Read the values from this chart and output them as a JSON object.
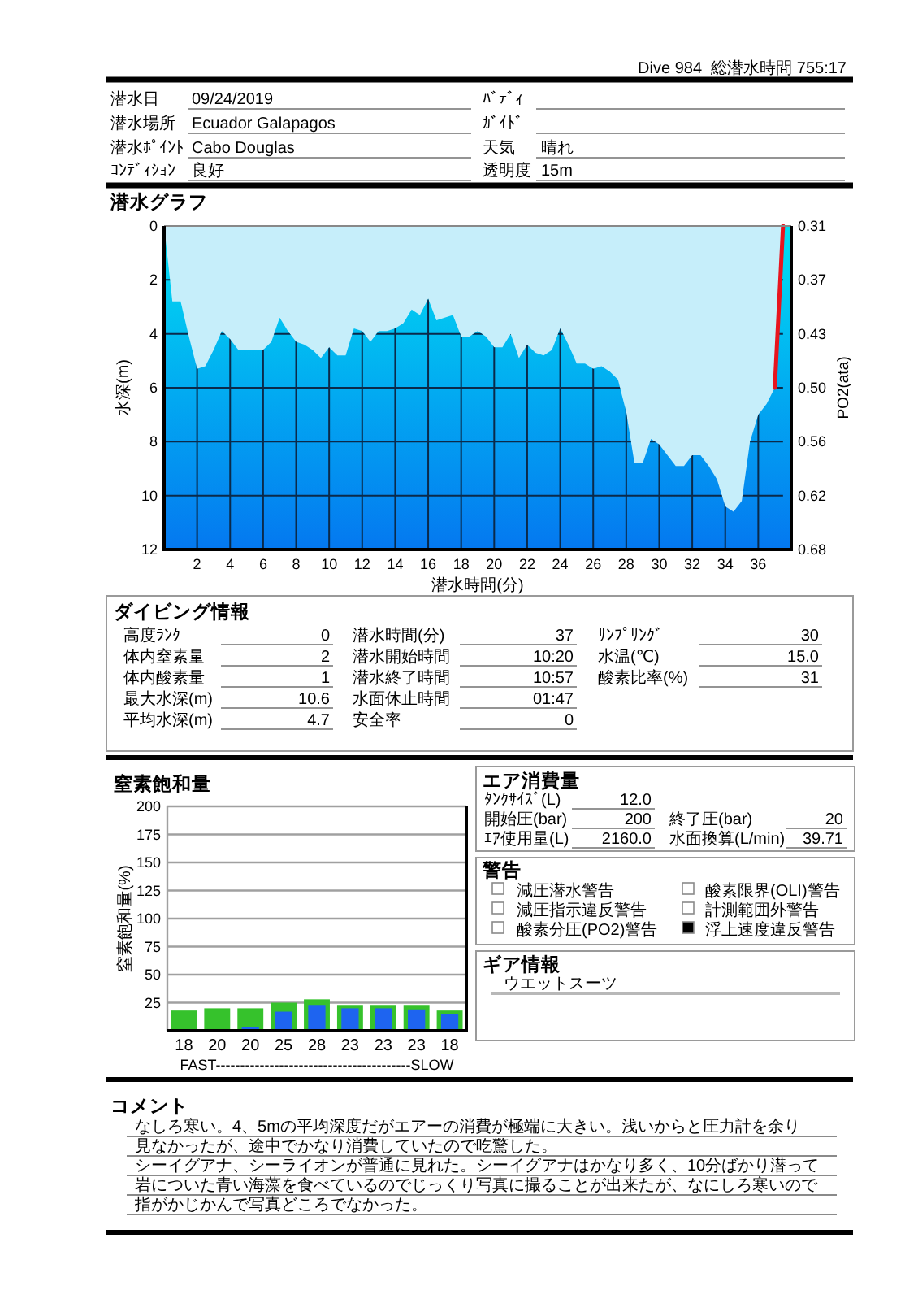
{
  "chart_data": [
    {
      "type": "other",
      "annotations": [
        "Dive 984",
        "総潜水時間 755:17",
        "潜水日",
        "09/24/2019",
        "潜水場所",
        "Ecuador Galapagos",
        "潜水ﾎﾟｲﾝﾄ",
        "Cabo Douglas",
        "ｺﾝﾃﾞｨｼｮﾝ",
        "良好",
        "ﾊﾞﾃﾞｨ",
        "ｶﾞｲﾄﾞ",
        "天気",
        "晴れ",
        "透明度",
        "15m"
      ]
    },
    {
      "type": "area",
      "title": "潜水グラフ",
      "xlabel": "潜水時間(分)",
      "ylabel": "水深(m)",
      "y2label": "PO2(ata)",
      "xlim": [
        0,
        38
      ],
      "ylim": [
        12,
        0
      ],
      "y2lim": [
        0.682,
        0.31
      ],
      "xticks": [
        2,
        4,
        6,
        8,
        10,
        12,
        14,
        16,
        18,
        20,
        22,
        24,
        26,
        28,
        30,
        32,
        34,
        36
      ],
      "yticks": [
        0,
        2,
        4,
        6,
        8,
        10,
        12
      ],
      "y2ticks": [
        0.31,
        {
          "value": 0.372,
          "label": "0.37"
        },
        {
          "value": 0.434,
          "label": "0.43"
        },
        {
          "value": 0.496,
          "label": "0.50"
        },
        {
          "value": 0.558,
          "label": "0.56"
        },
        0.62,
        {
          "value": 0.682,
          "label": "0.68"
        }
      ],
      "grid": true,
      "series": [
        {
          "color": "#c6eefa",
          "x": [
            0,
            0.5,
            1,
            1.5,
            2,
            2.5,
            3,
            3.5,
            4,
            4.5,
            5,
            5.5,
            6,
            6.5,
            7,
            7.5,
            8,
            8.5,
            9,
            9.5,
            10,
            10.5,
            11,
            11.5,
            12,
            12.5,
            13,
            13.5,
            14,
            14.5,
            15,
            15.5,
            16,
            16.5,
            17,
            17.5,
            18,
            18.5,
            19,
            19.5,
            20,
            20.5,
            21,
            21.5,
            22,
            22.5,
            23,
            23.5,
            24,
            24.5,
            25,
            25.5,
            26,
            26.5,
            27,
            27.5,
            28,
            28.5,
            29,
            29.5,
            30,
            30.5,
            31,
            31.5,
            32,
            32.5,
            33,
            33.5,
            34,
            34.5,
            35,
            35.5,
            36,
            36.5,
            37,
            37.5
          ],
          "values": [
            0,
            2.8,
            2.8,
            4.1,
            5.3,
            5.2,
            4.6,
            3.9,
            4.2,
            4.6,
            4.6,
            4.6,
            4.6,
            4.3,
            3.4,
            3.9,
            4.3,
            4.4,
            4.6,
            4.9,
            4.5,
            4.8,
            4.8,
            3.8,
            3.9,
            4.3,
            3.9,
            3.9,
            3.8,
            3.6,
            3.1,
            3.3,
            2.7,
            3.5,
            3.4,
            3.3,
            4.1,
            4.1,
            3.9,
            4.1,
            4.5,
            4.5,
            4.0,
            4.9,
            4.4,
            4.7,
            4.8,
            4.6,
            3.8,
            4.4,
            5.1,
            5.1,
            5.3,
            5.2,
            5.4,
            5.7,
            6.9,
            8.8,
            8.8,
            7.9,
            8.1,
            8.5,
            8.9,
            8.9,
            8.5,
            8.5,
            8.9,
            9.4,
            10.4,
            10.6,
            10.2,
            8.0,
            7.0,
            6.6,
            6.0,
            0
          ]
        },
        {
          "type": "line",
          "color": "#e8141e",
          "x": [
            37,
            37.5
          ],
          "values": [
            6.0,
            0
          ]
        }
      ]
    },
    {
      "type": "other",
      "title": "ダイビング情報",
      "annotations": [
        "高度ﾗﾝｸ",
        "0",
        "体内窒素量",
        "2",
        "体内酸素量",
        "1",
        "最大水深(m)",
        "10.6",
        "平均水深(m)",
        "4.7",
        "潜水時間(分)",
        "37",
        "潜水開始時間",
        "10:20",
        "潜水終了時間",
        "10:57",
        "水面休止時間",
        "01:47",
        "安全率",
        "0",
        "ｻﾝﾌﾟﾘﾝｸﾞ",
        "30",
        "水温(℃)",
        "15.0",
        "酸素比率(%)",
        "31"
      ]
    },
    {
      "type": "bar",
      "title": "窒素飽和量",
      "ylabel": "窒素飽和量(%)",
      "xlabel": "FAST----------------------------------------SLOW",
      "categories": [
        null,
        null,
        null,
        null,
        null,
        null,
        null,
        null,
        null
      ],
      "ylim": [
        0,
        200
      ],
      "yticks": [
        25,
        50,
        75,
        100,
        125,
        150,
        175,
        200
      ],
      "grid": "y",
      "series": [
        {
          "color": "#36c22c",
          "values": [
            18,
            20,
            20,
            25,
            28,
            23,
            23,
            23,
            18
          ],
          "value_labels": [
            "18",
            "20",
            "20",
            "25",
            "28",
            "23",
            "23",
            "23",
            "18"
          ]
        },
        {
          "color": "#1e64f0",
          "values": [
            null,
            null,
            3,
            17,
            23,
            20,
            20,
            19,
            15
          ]
        }
      ]
    },
    {
      "type": "other",
      "title": "エア消費量",
      "annotations": [
        "ﾀﾝｸｻｲｽﾞ(L)",
        "12.0",
        "開始圧(bar)",
        "200",
        "終了圧(bar)",
        "20",
        "ｴｱ使用量(L)",
        "2160.0",
        "水面換算(L/min)",
        "39.71"
      ]
    },
    {
      "type": "other",
      "title": "警告",
      "categories": [
        "減圧潜水警告",
        "減圧指示違反警告",
        "酸素分圧(PO2)警告",
        "酸素限界(OLI)警告",
        "計測範囲外警告",
        "浮上速度違反警告"
      ],
      "colors": [
        "#ffffff",
        "#ffffff",
        "#ffffff",
        "#ffffff",
        "#ffffff",
        "#000000"
      ]
    },
    {
      "type": "other",
      "title": "ギア情報",
      "annotations": [
        "ウエットスーツ"
      ]
    },
    {
      "type": "other",
      "title": "コメント",
      "annotations": [
        "なしろ寒い。4、5mの平均深度だがエアーの消費が極端に大きい。浅いからと圧力計を余り",
        "見なかったが、途中でかなり消費していたので吃驚した。",
        "シーイグアナ、シーライオンが普通に見れた。シーイグアナはかなり多く、10分ばかり潜って",
        "岩についた青い海藻を食べているのでじっくり写真に撮ることが出来たが、なにしろ寒いので",
        "指がかじかんで写真どころでなかった。"
      ]
    }
  ]
}
